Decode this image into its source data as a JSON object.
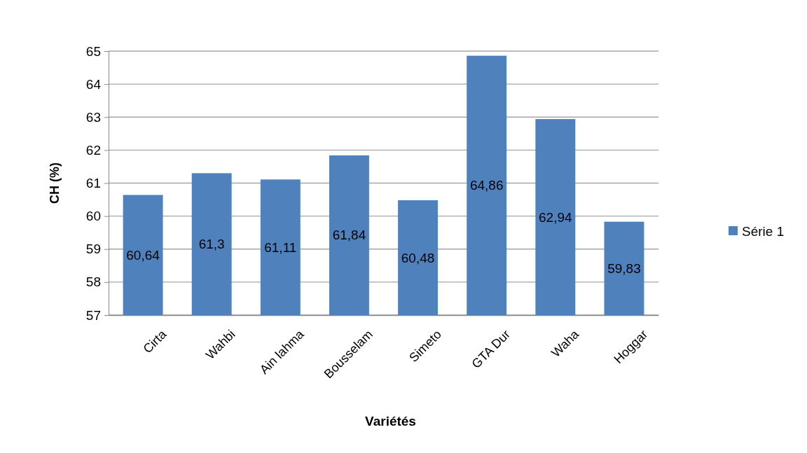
{
  "chart_data": {
    "type": "bar",
    "xlabel": "Variétés",
    "ylabel": "CH (%)",
    "categories": [
      "Cirta",
      "Wahbi",
      "Ain lahma",
      "Bousselam",
      "Simeto",
      "GTA Dur",
      "Waha",
      "Hoggar"
    ],
    "series": [
      {
        "name": "Série 1",
        "color": "#4f81bd",
        "values": [
          60.64,
          61.3,
          61.11,
          61.84,
          60.48,
          64.86,
          62.94,
          59.83
        ],
        "value_labels": [
          "60,64",
          "61,3",
          "61,11",
          "61,84",
          "60,48",
          "64,86",
          "62,94",
          "59,83"
        ]
      }
    ],
    "ylim": [
      57,
      65
    ],
    "yticks": [
      57,
      58,
      59,
      60,
      61,
      62,
      63,
      64,
      65
    ],
    "grid": true,
    "legend": "right"
  }
}
